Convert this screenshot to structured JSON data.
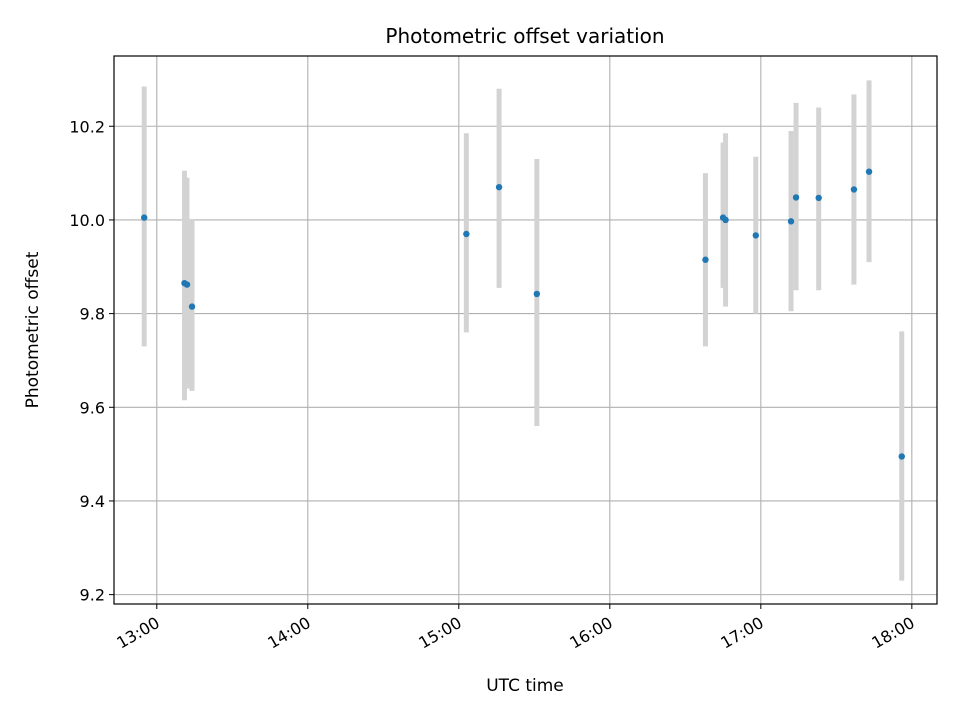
{
  "chart_data": {
    "type": "scatter",
    "title": "Photometric offset variation",
    "xlabel": "UTC time",
    "ylabel": "Photometric offset",
    "xlim": [
      "12:43",
      "18:10"
    ],
    "ylim": [
      9.18,
      10.35
    ],
    "x_ticks": [
      "13:00",
      "14:00",
      "15:00",
      "16:00",
      "17:00",
      "18:00"
    ],
    "y_ticks": [
      "9.2",
      "9.4",
      "9.6",
      "9.8",
      "10.0",
      "10.2"
    ],
    "grid": true,
    "point_color": "#1f77b4",
    "errorbar_color": "#d3d3d3",
    "points": [
      {
        "x": "12:55",
        "y": 10.005,
        "ylow": 9.73,
        "yhigh": 10.285
      },
      {
        "x": "13:11",
        "y": 9.865,
        "ylow": 9.615,
        "yhigh": 10.105
      },
      {
        "x": "13:12",
        "y": 9.862,
        "ylow": 9.64,
        "yhigh": 10.09
      },
      {
        "x": "13:14",
        "y": 9.815,
        "ylow": 9.635,
        "yhigh": 10.0
      },
      {
        "x": "15:03",
        "y": 9.97,
        "ylow": 9.76,
        "yhigh": 10.185
      },
      {
        "x": "15:16",
        "y": 10.07,
        "ylow": 9.855,
        "yhigh": 10.28
      },
      {
        "x": "15:31",
        "y": 9.842,
        "ylow": 9.56,
        "yhigh": 10.13
      },
      {
        "x": "16:38",
        "y": 9.915,
        "ylow": 9.73,
        "yhigh": 10.1
      },
      {
        "x": "16:45",
        "y": 10.005,
        "ylow": 9.855,
        "yhigh": 10.165
      },
      {
        "x": "16:46",
        "y": 10.0,
        "ylow": 9.815,
        "yhigh": 10.185
      },
      {
        "x": "16:58",
        "y": 9.967,
        "ylow": 9.8,
        "yhigh": 10.135
      },
      {
        "x": "17:12",
        "y": 9.997,
        "ylow": 9.805,
        "yhigh": 10.19
      },
      {
        "x": "17:14",
        "y": 10.048,
        "ylow": 9.85,
        "yhigh": 10.25
      },
      {
        "x": "17:23",
        "y": 10.047,
        "ylow": 9.85,
        "yhigh": 10.24
      },
      {
        "x": "17:37",
        "y": 10.065,
        "ylow": 9.862,
        "yhigh": 10.268
      },
      {
        "x": "17:43",
        "y": 10.103,
        "ylow": 9.91,
        "yhigh": 10.298
      },
      {
        "x": "17:56",
        "y": 9.495,
        "ylow": 9.23,
        "yhigh": 9.762
      }
    ]
  }
}
